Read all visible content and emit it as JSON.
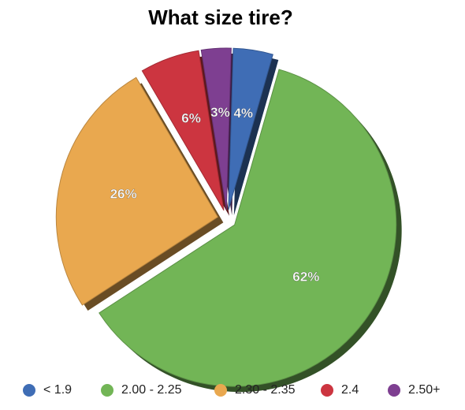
{
  "chart_data": {
    "type": "pie",
    "title": "What size tire?",
    "categories": [
      "< 1.9",
      "2.00 - 2.25",
      "2.30 - 2.35",
      "2.4",
      "2.50+"
    ],
    "values": [
      4,
      62,
      26,
      6,
      3
    ],
    "value_labels": [
      "4%",
      "62%",
      "26%",
      "6%",
      "3%"
    ],
    "colors": [
      "#3f6db5",
      "#72b556",
      "#e9a84f",
      "#cc3540",
      "#7e3f91"
    ],
    "legend": "bottom"
  }
}
